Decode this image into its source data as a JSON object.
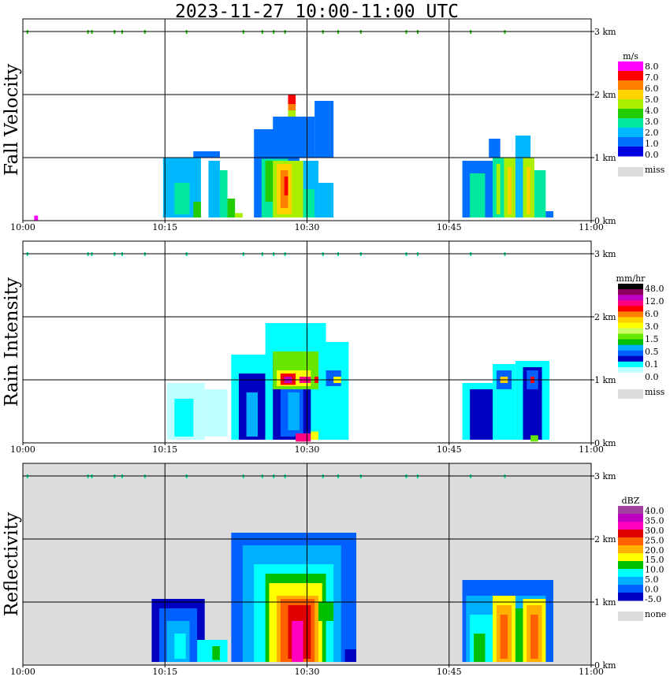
{
  "title": "2023-11-27   10:00-11:00 UTC",
  "x_ticks": [
    "10:00",
    "10:15",
    "10:30",
    "10:45",
    "11:00"
  ],
  "y_ticks": [
    "0 km",
    "1 km",
    "2 km",
    "3 km"
  ],
  "chart_data": [
    {
      "type": "heatmap",
      "title": "Fall Velocity",
      "xlim": [
        "10:00",
        "11:00"
      ],
      "ylim_km": [
        0,
        3.2
      ],
      "background": "#ffffff",
      "legend": {
        "unit": "m/s",
        "labels": [
          "8.0",
          "7.0",
          "6.0",
          "5.0",
          "4.0",
          "3.0",
          "2.0",
          "1.0",
          "0.0",
          "miss"
        ],
        "colors": [
          "#ff00ff",
          "#ff0000",
          "#ff7f00",
          "#ffd200",
          "#aaee00",
          "#22cc00",
          "#00e8a0",
          "#00b8ff",
          "#0070ff",
          "#0000e0"
        ],
        "missing_color": "#dcdcdc"
      },
      "cells": [
        {
          "t0": 10.37,
          "t1": 10.47,
          "h0": 0.05,
          "h1": 1.0,
          "c": 7
        },
        {
          "t0": 10.4,
          "t1": 10.44,
          "h0": 0.1,
          "h1": 0.6,
          "c": 6
        },
        {
          "t0": 10.45,
          "t1": 10.47,
          "h0": 0.05,
          "h1": 0.3,
          "c": 5
        },
        {
          "t0": 10.49,
          "t1": 10.52,
          "h0": 0.05,
          "h1": 0.95,
          "c": 7
        },
        {
          "t0": 10.52,
          "t1": 10.54,
          "h0": 0.05,
          "h1": 0.8,
          "c": 6
        },
        {
          "t0": 10.54,
          "t1": 10.56,
          "h0": 0.05,
          "h1": 0.35,
          "c": 5
        },
        {
          "t0": 10.56,
          "t1": 10.58,
          "h0": 0.05,
          "h1": 0.12,
          "c": 4
        },
        {
          "t0": 10.61,
          "t1": 10.73,
          "h0": 0.05,
          "h1": 1.45,
          "c": 8
        },
        {
          "t0": 10.63,
          "t1": 10.7,
          "h0": 0.05,
          "h1": 0.98,
          "c": 6
        },
        {
          "t0": 10.64,
          "t1": 10.66,
          "h0": 0.3,
          "h1": 0.95,
          "c": 5
        },
        {
          "t0": 10.66,
          "t1": 10.74,
          "h0": 0.05,
          "h1": 0.95,
          "c": 4
        },
        {
          "t0": 10.67,
          "t1": 10.71,
          "h0": 0.1,
          "h1": 0.9,
          "c": 3
        },
        {
          "t0": 10.68,
          "t1": 10.7,
          "h0": 0.2,
          "h1": 0.8,
          "c": 2
        },
        {
          "t0": 10.69,
          "t1": 10.7,
          "h0": 0.4,
          "h1": 0.7,
          "c": 1
        },
        {
          "t0": 10.66,
          "t1": 10.77,
          "h0": 1.0,
          "h1": 1.65,
          "c": 8
        },
        {
          "t0": 10.7,
          "t1": 10.72,
          "h0": 1.65,
          "h1": 1.85,
          "c": 4
        },
        {
          "t0": 10.7,
          "t1": 10.72,
          "h0": 1.75,
          "h1": 1.95,
          "c": 2
        },
        {
          "t0": 10.7,
          "t1": 10.72,
          "h0": 1.85,
          "h1": 2.0,
          "c": 1
        },
        {
          "t0": 10.74,
          "t1": 10.78,
          "h0": 0.05,
          "h1": 0.95,
          "c": 7
        },
        {
          "t0": 10.74,
          "t1": 10.77,
          "h0": 0.05,
          "h1": 0.5,
          "c": 6
        },
        {
          "t0": 10.77,
          "t1": 10.82,
          "h0": 1.0,
          "h1": 1.9,
          "c": 8
        },
        {
          "t0": 10.78,
          "t1": 10.82,
          "h0": 0.05,
          "h1": 0.6,
          "c": 7
        },
        {
          "t0": 10.45,
          "t1": 10.52,
          "h0": 1.0,
          "h1": 1.1,
          "c": 8
        },
        {
          "t0": 11.16,
          "t1": 11.24,
          "h0": 0.05,
          "h1": 0.95,
          "c": 8
        },
        {
          "t0": 11.18,
          "t1": 11.22,
          "h0": 0.05,
          "h1": 0.75,
          "c": 6
        },
        {
          "t0": 11.24,
          "t1": 11.27,
          "h0": 0.05,
          "h1": 1.0,
          "c": 6
        },
        {
          "t0": 11.25,
          "t1": 11.26,
          "h0": 0.1,
          "h1": 0.9,
          "c": 4
        },
        {
          "t0": 11.27,
          "t1": 11.3,
          "h0": 0.05,
          "h1": 1.0,
          "c": 4
        },
        {
          "t0": 11.28,
          "t1": 11.29,
          "h0": 0.1,
          "h1": 0.85,
          "c": 3
        },
        {
          "t0": 11.3,
          "t1": 11.32,
          "h0": 0.05,
          "h1": 1.0,
          "c": 7
        },
        {
          "t0": 11.32,
          "t1": 11.35,
          "h0": 0.05,
          "h1": 1.0,
          "c": 4
        },
        {
          "t0": 11.33,
          "t1": 11.34,
          "h0": 0.1,
          "h1": 0.85,
          "c": 3
        },
        {
          "t0": 11.35,
          "t1": 11.38,
          "h0": 0.05,
          "h1": 0.8,
          "c": 6
        },
        {
          "t0": 11.38,
          "t1": 11.4,
          "h0": 0.05,
          "h1": 0.15,
          "c": 8
        },
        {
          "t0": 11.23,
          "t1": 11.26,
          "h0": 1.0,
          "h1": 1.3,
          "c": 8
        },
        {
          "t0": 11.3,
          "t1": 11.34,
          "h0": 1.0,
          "h1": 1.35,
          "c": 7
        },
        {
          "t0": 10.03,
          "t1": 10.04,
          "h0": 0.0,
          "h1": 0.08,
          "c": 0
        }
      ],
      "top_specks": [
        0.01,
        0.17,
        0.18,
        0.24,
        0.26,
        0.32,
        0.43,
        0.58,
        0.63,
        0.66,
        0.69,
        0.79,
        0.83,
        0.89,
        1.01,
        1.04,
        1.18,
        1.27
      ]
    },
    {
      "type": "heatmap",
      "title": "Rain Intensity",
      "xlim": [
        "10:00",
        "11:00"
      ],
      "ylim_km": [
        0,
        3.2
      ],
      "background": "#ffffff",
      "legend": {
        "unit": "mm/hr",
        "labels": [
          "48.0",
          "12.0",
          "6.0",
          "3.0",
          "1.5",
          "0.5",
          "0.1",
          "0.0",
          "miss"
        ],
        "colors": [
          "#000000",
          "#8c0060",
          "#c000c0",
          "#ff0080",
          "#ff0000",
          "#ff8000",
          "#ffd000",
          "#ffff00",
          "#ccff66",
          "#66e600",
          "#00c000",
          "#00b0ff",
          "#0060ff",
          "#0000c0",
          "#00ffff",
          "#c0ffff",
          "#ffffff"
        ],
        "missing_color": "#dcdcdc"
      },
      "cells": [
        {
          "t0": 10.38,
          "t1": 10.48,
          "h0": 0.05,
          "h1": 0.95,
          "c": 15
        },
        {
          "t0": 10.4,
          "t1": 10.45,
          "h0": 0.1,
          "h1": 0.7,
          "c": 14
        },
        {
          "t0": 10.48,
          "t1": 10.54,
          "h0": 0.1,
          "h1": 0.85,
          "c": 15
        },
        {
          "t0": 10.55,
          "t1": 10.66,
          "h0": 0.05,
          "h1": 1.4,
          "c": 14
        },
        {
          "t0": 10.57,
          "t1": 10.64,
          "h0": 0.05,
          "h1": 1.1,
          "c": 13
        },
        {
          "t0": 10.59,
          "t1": 10.62,
          "h0": 0.1,
          "h1": 0.8,
          "c": 11
        },
        {
          "t0": 10.64,
          "t1": 10.8,
          "h0": 0.05,
          "h1": 1.9,
          "c": 14
        },
        {
          "t0": 10.66,
          "t1": 10.76,
          "h0": 0.05,
          "h1": 1.4,
          "c": 13
        },
        {
          "t0": 10.68,
          "t1": 10.74,
          "h0": 0.1,
          "h1": 1.2,
          "c": 12
        },
        {
          "t0": 10.7,
          "t1": 10.73,
          "h0": 0.2,
          "h1": 0.8,
          "c": 11
        },
        {
          "t0": 10.66,
          "t1": 10.8,
          "h0": 0.85,
          "h1": 1.45,
          "c": 9
        },
        {
          "t0": 10.67,
          "t1": 10.76,
          "h0": 0.9,
          "h1": 1.15,
          "c": 7
        },
        {
          "t0": 10.68,
          "t1": 10.72,
          "h0": 0.92,
          "h1": 1.1,
          "c": 4
        },
        {
          "t0": 10.69,
          "t1": 10.71,
          "h0": 0.95,
          "h1": 1.05,
          "c": 2
        },
        {
          "t0": 10.73,
          "t1": 10.76,
          "h0": 0.95,
          "h1": 1.05,
          "c": 3
        },
        {
          "t0": 10.77,
          "t1": 10.79,
          "h0": 0.95,
          "h1": 1.05,
          "c": 4
        },
        {
          "t0": 10.72,
          "t1": 10.76,
          "h0": 0.02,
          "h1": 0.15,
          "c": 3
        },
        {
          "t0": 10.76,
          "t1": 10.78,
          "h0": 0.05,
          "h1": 0.18,
          "c": 7
        },
        {
          "t0": 10.78,
          "t1": 10.86,
          "h0": 0.05,
          "h1": 1.6,
          "c": 14
        },
        {
          "t0": 10.8,
          "t1": 10.84,
          "h0": 0.9,
          "h1": 1.15,
          "c": 12
        },
        {
          "t0": 10.82,
          "t1": 10.84,
          "h0": 0.95,
          "h1": 1.05,
          "c": 7
        },
        {
          "t0": 11.16,
          "t1": 11.26,
          "h0": 0.05,
          "h1": 0.95,
          "c": 14
        },
        {
          "t0": 11.18,
          "t1": 11.24,
          "h0": 0.05,
          "h1": 0.85,
          "c": 13
        },
        {
          "t0": 11.24,
          "t1": 11.3,
          "h0": 0.05,
          "h1": 1.25,
          "c": 14
        },
        {
          "t0": 11.25,
          "t1": 11.29,
          "h0": 0.85,
          "h1": 1.15,
          "c": 12
        },
        {
          "t0": 11.26,
          "t1": 11.28,
          "h0": 0.95,
          "h1": 1.05,
          "c": 6
        },
        {
          "t0": 11.3,
          "t1": 11.39,
          "h0": 0.05,
          "h1": 1.3,
          "c": 14
        },
        {
          "t0": 11.32,
          "t1": 11.37,
          "h0": 0.05,
          "h1": 1.2,
          "c": 13
        },
        {
          "t0": 11.33,
          "t1": 11.36,
          "h0": 0.85,
          "h1": 1.15,
          "c": 12
        },
        {
          "t0": 11.34,
          "t1": 11.35,
          "h0": 0.95,
          "h1": 1.05,
          "c": 4
        },
        {
          "t0": 11.34,
          "t1": 11.36,
          "h0": 0.02,
          "h1": 0.12,
          "c": 9
        }
      ],
      "top_specks": [
        0.01,
        0.17,
        0.18,
        0.24,
        0.26,
        0.32,
        0.43,
        0.58,
        0.63,
        0.66,
        0.69,
        0.79,
        0.83,
        0.89,
        1.01,
        1.04,
        1.18,
        1.27
      ]
    },
    {
      "type": "heatmap",
      "title": "Reflectivity",
      "xlim": [
        "10:00",
        "11:00"
      ],
      "ylim_km": [
        0,
        3.2
      ],
      "background": "#dcdcdc",
      "legend": {
        "unit": "dBZ",
        "labels": [
          "40.0",
          "35.0",
          "30.0",
          "25.0",
          "20.0",
          "15.0",
          "10.0",
          "5.0",
          "0.0",
          "-5.0",
          "none"
        ],
        "colors": [
          "#a040a0",
          "#c000c0",
          "#ff00c0",
          "#e00000",
          "#ff6000",
          "#ffb000",
          "#ffff00",
          "#00c000",
          "#00ffff",
          "#00b0ff",
          "#0060ff",
          "#0000c0"
        ],
        "missing_color": "#dcdcdc"
      },
      "cells": [
        {
          "t0": 10.34,
          "t1": 10.48,
          "h0": 0.05,
          "h1": 1.05,
          "c": 11
        },
        {
          "t0": 10.36,
          "t1": 10.46,
          "h0": 0.05,
          "h1": 0.9,
          "c": 10
        },
        {
          "t0": 10.38,
          "t1": 10.44,
          "h0": 0.05,
          "h1": 0.7,
          "c": 9
        },
        {
          "t0": 10.4,
          "t1": 10.43,
          "h0": 0.1,
          "h1": 0.5,
          "c": 8
        },
        {
          "t0": 10.46,
          "t1": 10.54,
          "h0": 0.05,
          "h1": 0.4,
          "c": 8
        },
        {
          "t0": 10.5,
          "t1": 10.52,
          "h0": 0.08,
          "h1": 0.3,
          "c": 7
        },
        {
          "t0": 10.55,
          "t1": 10.88,
          "h0": 0.05,
          "h1": 2.1,
          "c": 10
        },
        {
          "t0": 10.58,
          "t1": 10.84,
          "h0": 0.05,
          "h1": 1.9,
          "c": 9
        },
        {
          "t0": 10.61,
          "t1": 10.82,
          "h0": 0.05,
          "h1": 1.6,
          "c": 8
        },
        {
          "t0": 10.64,
          "t1": 10.8,
          "h0": 0.05,
          "h1": 1.45,
          "c": 7
        },
        {
          "t0": 10.65,
          "t1": 10.79,
          "h0": 0.05,
          "h1": 1.3,
          "c": 6
        },
        {
          "t0": 10.67,
          "t1": 10.78,
          "h0": 0.05,
          "h1": 1.1,
          "c": 5
        },
        {
          "t0": 10.68,
          "t1": 10.77,
          "h0": 0.05,
          "h1": 1.05,
          "c": 4
        },
        {
          "t0": 10.7,
          "t1": 10.76,
          "h0": 0.1,
          "h1": 0.95,
          "c": 3
        },
        {
          "t0": 10.71,
          "t1": 10.74,
          "h0": 0.05,
          "h1": 0.7,
          "c": 2
        },
        {
          "t0": 10.78,
          "t1": 10.82,
          "h0": 0.7,
          "h1": 1.0,
          "c": 7
        },
        {
          "t0": 10.85,
          "t1": 10.88,
          "h0": 0.05,
          "h1": 0.25,
          "c": 11
        },
        {
          "t0": 11.16,
          "t1": 11.4,
          "h0": 0.05,
          "h1": 1.35,
          "c": 10
        },
        {
          "t0": 11.17,
          "t1": 11.38,
          "h0": 0.05,
          "h1": 1.1,
          "c": 9
        },
        {
          "t0": 11.18,
          "t1": 11.24,
          "h0": 0.05,
          "h1": 0.8,
          "c": 8
        },
        {
          "t0": 11.19,
          "t1": 11.22,
          "h0": 0.05,
          "h1": 0.5,
          "c": 7
        },
        {
          "t0": 11.24,
          "t1": 11.3,
          "h0": 0.05,
          "h1": 1.1,
          "c": 6
        },
        {
          "t0": 11.25,
          "t1": 11.29,
          "h0": 0.05,
          "h1": 0.95,
          "c": 5
        },
        {
          "t0": 11.26,
          "t1": 11.28,
          "h0": 0.1,
          "h1": 0.8,
          "c": 4
        },
        {
          "t0": 11.3,
          "t1": 11.32,
          "h0": 0.05,
          "h1": 0.9,
          "c": 7
        },
        {
          "t0": 11.32,
          "t1": 11.38,
          "h0": 0.05,
          "h1": 1.05,
          "c": 6
        },
        {
          "t0": 11.33,
          "t1": 11.37,
          "h0": 0.05,
          "h1": 0.95,
          "c": 5
        },
        {
          "t0": 11.34,
          "t1": 11.36,
          "h0": 0.1,
          "h1": 0.8,
          "c": 4
        }
      ],
      "top_specks": [
        0.01,
        0.17,
        0.18,
        0.24,
        0.26,
        0.32,
        0.43,
        0.58,
        0.63,
        0.66,
        0.69,
        0.79,
        0.83,
        0.89,
        1.01,
        1.04,
        1.18,
        1.27
      ]
    }
  ]
}
